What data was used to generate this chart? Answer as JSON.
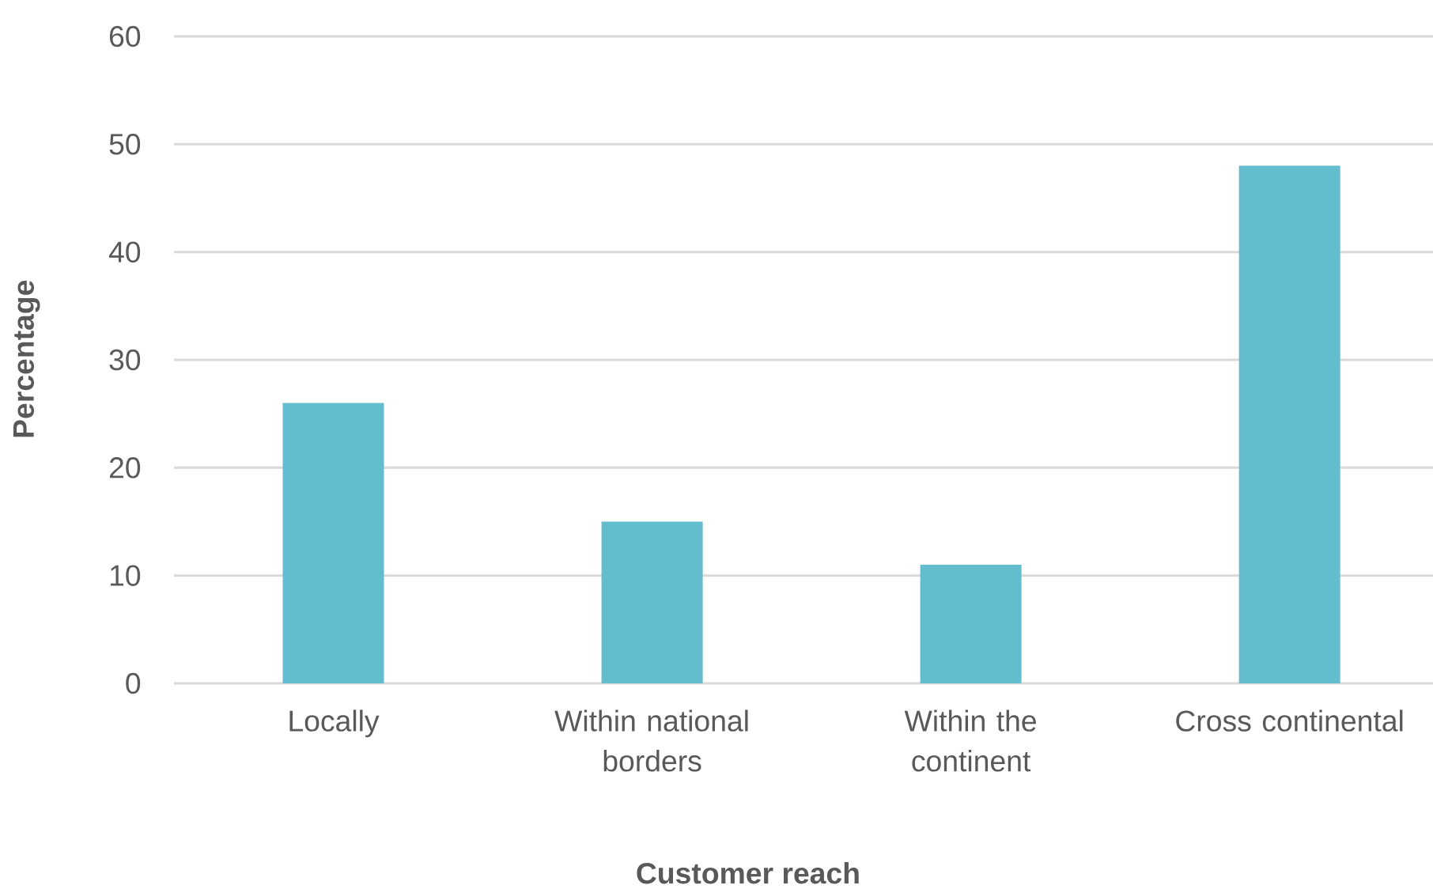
{
  "chart_data": {
    "type": "bar",
    "xlabel": "Customer reach",
    "ylabel": "Percentage",
    "categories": [
      "Locally",
      "Within national borders",
      "Within the continent",
      "Cross continental"
    ],
    "values": [
      26,
      15,
      11,
      48
    ],
    "color": "#63bdcf",
    "ylim": [
      0,
      60
    ],
    "yticks": [
      0,
      10,
      20,
      30,
      40,
      50,
      60
    ],
    "grid": "y"
  }
}
